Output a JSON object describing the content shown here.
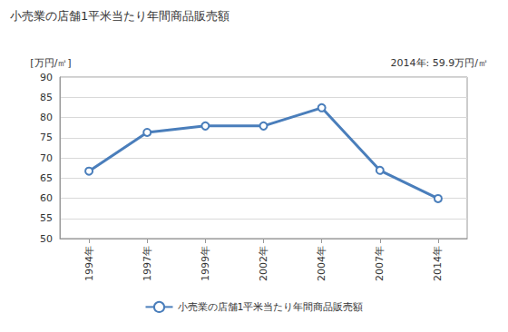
{
  "chart_data": {
    "type": "line",
    "title": "小売業の店舗1平米当たり年間商品販売額",
    "ylabel": "[万円/㎡]",
    "annotation": "2014年: 59.9万円/㎡",
    "categories": [
      "1994年",
      "1997年",
      "1999年",
      "2002年",
      "2004年",
      "2007年",
      "2014年"
    ],
    "series": [
      {
        "name": "小売業の店舗1平米当たり年間商品販売額",
        "color": "#4a7ebb",
        "values": [
          66.7,
          76.3,
          77.9,
          77.9,
          82.4,
          66.9,
          59.9
        ]
      }
    ],
    "ylim": [
      50,
      90
    ],
    "yticks": [
      50,
      55,
      60,
      65,
      70,
      75,
      80,
      85,
      90
    ],
    "grid": true,
    "legend": "bottom",
    "marker": "circle"
  }
}
